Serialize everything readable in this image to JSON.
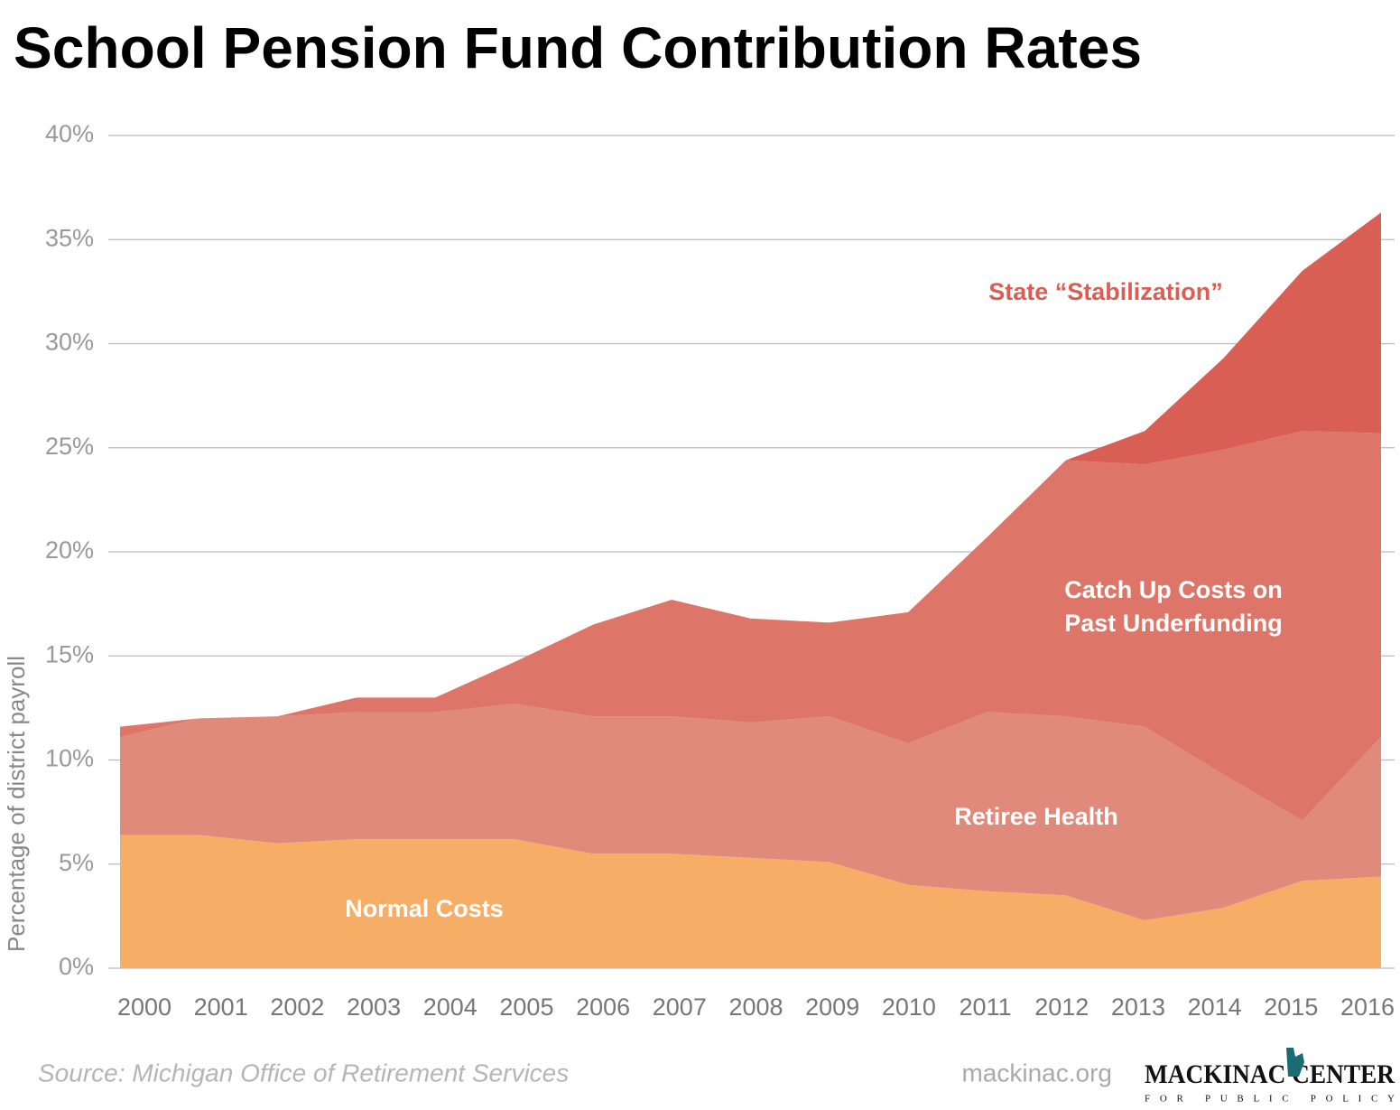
{
  "chart_data": {
    "type": "stacked-area",
    "title": "School Pension Fund Contribution Rates",
    "ylabel": "Percentage of district payroll",
    "categories": [
      "2000",
      "2001",
      "2002",
      "2003",
      "2004",
      "2005",
      "2006",
      "2007",
      "2008",
      "2009",
      "2010",
      "2011",
      "2012",
      "2013",
      "2014",
      "2015",
      "2016"
    ],
    "series": [
      {
        "name": "Normal Costs",
        "color": "#f6ae67",
        "values": [
          6.4,
          6.4,
          6.0,
          6.2,
          6.2,
          6.2,
          5.5,
          5.5,
          5.3,
          5.1,
          4.0,
          3.7,
          3.5,
          2.3,
          2.9,
          4.2,
          4.4
        ]
      },
      {
        "name": "Retiree Health",
        "color": "#e08a7c",
        "values": [
          4.7,
          5.6,
          6.1,
          6.1,
          6.1,
          6.5,
          6.6,
          6.6,
          6.5,
          7.0,
          6.8,
          8.6,
          8.6,
          9.3,
          6.4,
          2.9,
          6.7
        ]
      },
      {
        "name": "Catch Up Costs on Past Underfunding",
        "color": "#de7569",
        "values": [
          0.5,
          0,
          0,
          0.7,
          0.7,
          2.0,
          4.4,
          5.6,
          5.0,
          4.5,
          6.3,
          8.4,
          12.3,
          12.6,
          15.6,
          18.7,
          14.6
        ]
      },
      {
        "name": "State “Stabilization”",
        "color": "#d95e54",
        "values": [
          0,
          0,
          0,
          0,
          0,
          0,
          0,
          0,
          0,
          0,
          0,
          0,
          0,
          1.6,
          4.4,
          7.7,
          10.6
        ]
      }
    ],
    "annotations": [
      {
        "lines": [
          "Normal Costs"
        ],
        "color": "#ffffff"
      },
      {
        "lines": [
          "Retiree Health"
        ],
        "color": "#ffffff"
      },
      {
        "lines": [
          "Catch Up Costs on",
          "Past Underfunding"
        ],
        "color": "#ffffff"
      },
      {
        "lines": [
          "State “Stabilization”"
        ],
        "color": "#d95e54"
      }
    ],
    "ylim": [
      0,
      40
    ],
    "yticks": [
      {
        "value": 0,
        "label": "0%"
      },
      {
        "value": 5,
        "label": "5%"
      },
      {
        "value": 10,
        "label": "10%"
      },
      {
        "value": 15,
        "label": "15%"
      },
      {
        "value": 20,
        "label": "20%"
      },
      {
        "value": 25,
        "label": "25%"
      },
      {
        "value": 30,
        "label": "30%"
      },
      {
        "value": 35,
        "label": "35%"
      },
      {
        "value": 40,
        "label": "40%"
      }
    ],
    "grid": true,
    "source": "Source: Michigan Office of Retirement Services",
    "website": "mackinac.org",
    "logo": {
      "name": "MACKINAC CENTER",
      "tagline": "FOR PUBLIC POLICY"
    }
  }
}
